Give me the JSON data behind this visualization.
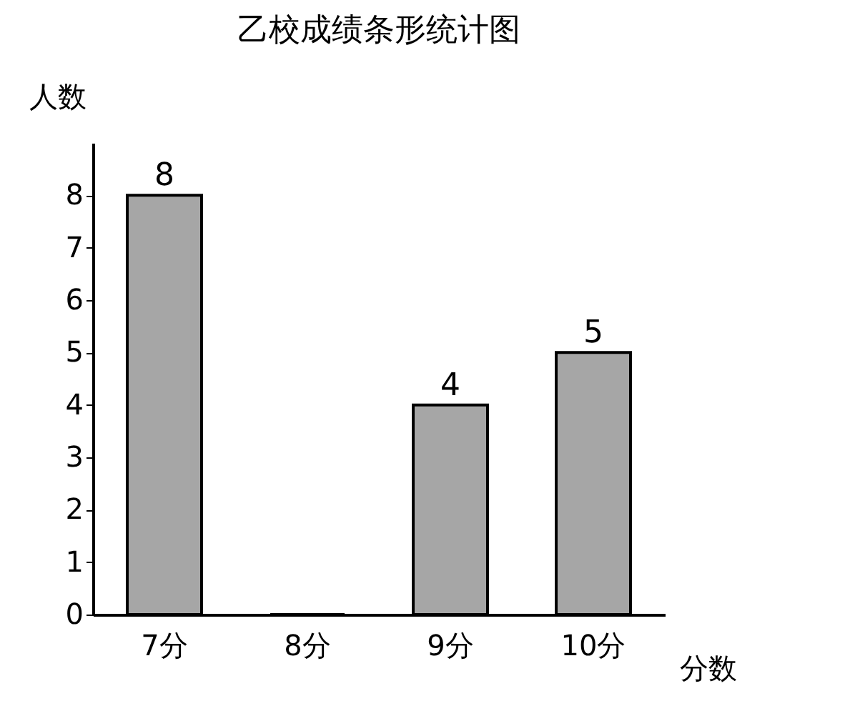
{
  "chart_data": {
    "type": "bar",
    "title": "乙校成绩条形统计图",
    "xlabel": "分数",
    "ylabel": "人数",
    "categories": [
      "7分",
      "8分",
      "9分",
      "10分"
    ],
    "values": [
      8,
      0,
      4,
      5
    ],
    "value_labels": [
      "8",
      null,
      "4",
      "5"
    ],
    "color": "#a6a6a6",
    "ylim": [
      0,
      9
    ],
    "yticks": [
      0,
      1,
      2,
      3,
      4,
      5,
      6,
      7,
      8
    ],
    "grid": false
  }
}
